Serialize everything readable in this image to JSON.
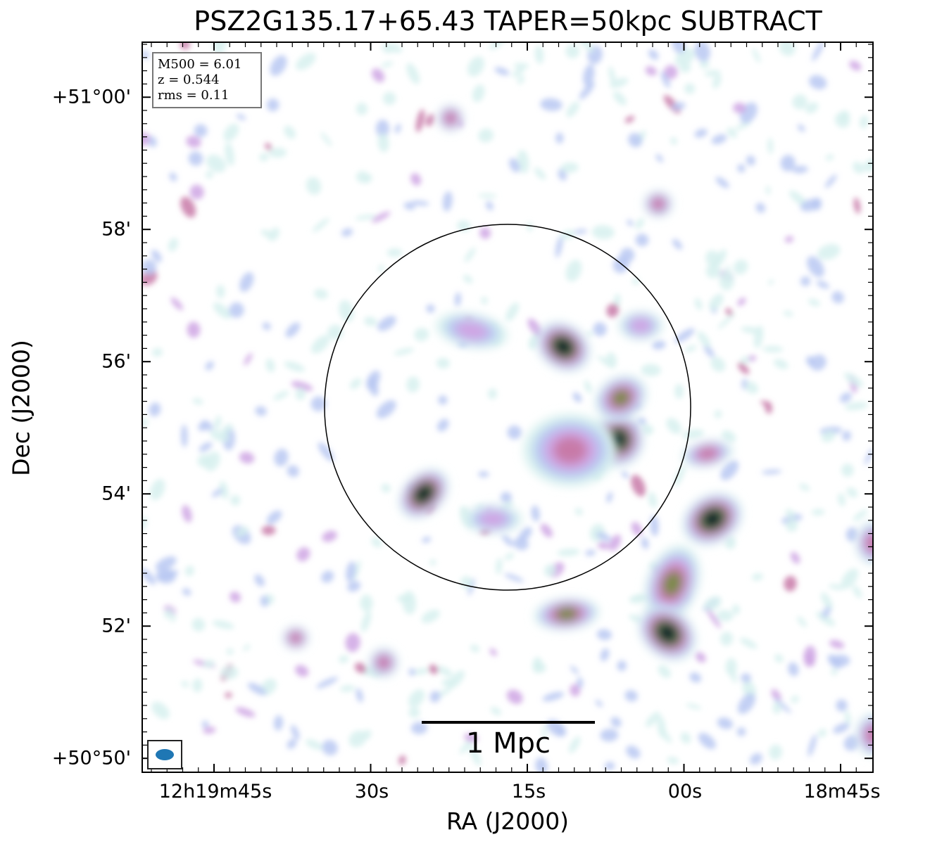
{
  "title": "PSZ2G135.17+65.43 TAPER=50kpc SUBTRACT",
  "axes": {
    "xlabel": "RA (J2000)",
    "ylabel": "Dec (J2000)",
    "ra_ticks": [
      "12h19m45s",
      "30s",
      "15s",
      "00s",
      "18m45s"
    ],
    "dec_ticks": [
      "+51°00'",
      "58'",
      "56'",
      "54'",
      "52'",
      "+50°50'"
    ]
  },
  "info": {
    "mass": "M500 = 6.01",
    "redshift": "z = 0.544",
    "rms": "rms = 0.11"
  },
  "scalebar": {
    "label": "1 Mpc"
  },
  "beam": {
    "color": "#1f77b4"
  },
  "colormap": {
    "levels": [
      "#d6f0ee",
      "#b8c8f2",
      "#cfa6e4",
      "#c87aa8",
      "#7a8a46",
      "#2f6a5a",
      "#0a0a1e"
    ]
  }
}
